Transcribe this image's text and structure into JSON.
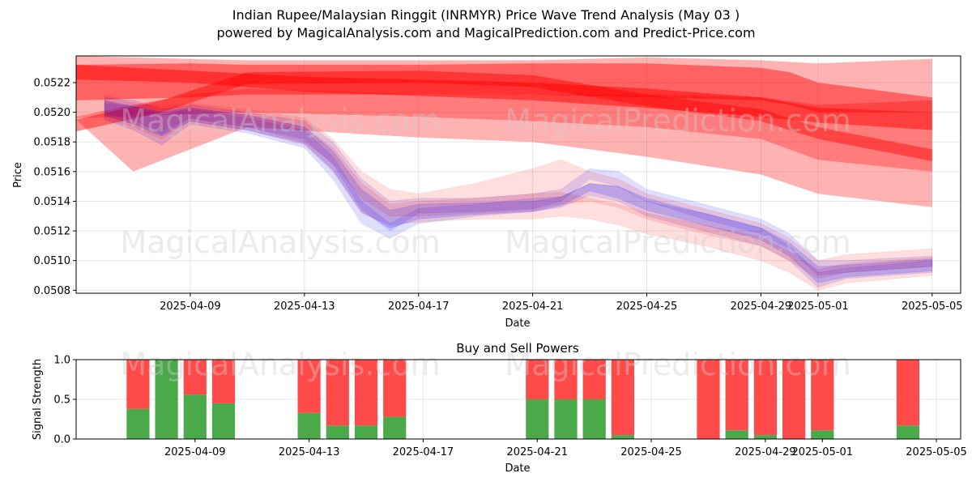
{
  "header": {
    "title": "Indian Rupee/Malaysian Ringgit (INRMYR) Price Wave Trend Analysis (May 03 )",
    "subtitle": "powered by MagicalAnalysis.com and MagicalPrediction.com and Predict-Price.com"
  },
  "watermarks": [
    "MagicalAnalysis.com",
    "MagicalPrediction.com"
  ],
  "colors": {
    "bear": "#ff0000",
    "bull": "#0000ff",
    "buy": "#4aaa4a",
    "sell": "#ff4a4a"
  },
  "chart_data": [
    {
      "type": "area",
      "title": "",
      "xlabel": "Date",
      "ylabel": "Price",
      "ylim": [
        0.05078,
        0.05238
      ],
      "xlim": [
        "2025-04-05",
        "2025-05-06"
      ],
      "grid": true,
      "y_ticks": [
        0.0508,
        0.051,
        0.0512,
        0.0514,
        0.0516,
        0.0518,
        0.052,
        0.0522
      ],
      "y_tick_labels": [
        "0.0508",
        "0.0510",
        "0.0512",
        "0.0514",
        "0.0516",
        "0.0518",
        "0.0520",
        "0.0522"
      ],
      "x_ticks": [
        "2025-04-09",
        "2025-04-13",
        "2025-04-17",
        "2025-04-21",
        "2025-04-25",
        "2025-04-29",
        "2025-05-01",
        "2025-05-05"
      ],
      "x_tick_labels": [
        "2025-04-09",
        "2025-04-13",
        "2025-04-17",
        "2025-04-21",
        "2025-04-25",
        "2025-04-29",
        "2025-05-01",
        "2025-05-05"
      ],
      "forecast_bands": [
        {
          "color": "#ff0000",
          "opacity": 0.3,
          "x": [
            "2025-04-05",
            "2025-04-11",
            "2025-04-17",
            "2025-04-21",
            "2025-04-25",
            "2025-04-29",
            "2025-05-01",
            "2025-05-05"
          ],
          "upper": [
            0.05238,
            0.05235,
            0.05235,
            0.05235,
            0.05237,
            0.05235,
            0.05233,
            0.05236
          ],
          "lower": [
            0.05196,
            0.052,
            0.05197,
            0.05194,
            0.0519,
            0.05182,
            0.05168,
            0.0516
          ]
        },
        {
          "color": "#ff0000",
          "opacity": 0.3,
          "x": [
            "2025-04-05",
            "2025-04-07",
            "2025-04-09",
            "2025-04-11",
            "2025-04-17",
            "2025-04-21",
            "2025-04-25",
            "2025-04-29",
            "2025-05-01",
            "2025-05-05"
          ],
          "upper": [
            0.05197,
            0.05205,
            0.05212,
            0.05216,
            0.05212,
            0.05212,
            0.05212,
            0.0521,
            0.05205,
            0.05208
          ],
          "lower": [
            0.05195,
            0.0516,
            0.05175,
            0.0519,
            0.05183,
            0.0518,
            0.0517,
            0.05158,
            0.05145,
            0.05136
          ]
        },
        {
          "color": "#ff0000",
          "opacity": 0.45,
          "x": [
            "2025-04-05",
            "2025-04-09",
            "2025-04-11",
            "2025-04-17",
            "2025-04-21",
            "2025-04-25",
            "2025-04-29",
            "2025-04-30",
            "2025-05-01",
            "2025-05-05"
          ],
          "upper": [
            0.05232,
            0.05233,
            0.05232,
            0.05232,
            0.05233,
            0.05233,
            0.0523,
            0.05227,
            0.0522,
            0.0521
          ],
          "lower": [
            0.05208,
            0.0521,
            0.05212,
            0.05212,
            0.05212,
            0.0521,
            0.05208,
            0.05205,
            0.052,
            0.052
          ]
        },
        {
          "color": "#ff0000",
          "opacity": 0.45,
          "x": [
            "2025-04-05",
            "2025-04-08",
            "2025-04-11",
            "2025-04-17",
            "2025-04-21",
            "2025-04-25",
            "2025-04-29",
            "2025-05-01",
            "2025-05-05"
          ],
          "upper": [
            0.05195,
            0.05208,
            0.05227,
            0.05228,
            0.05225,
            0.05212,
            0.05202,
            0.0519,
            0.05175
          ]
        },
        {
          "color": "#ff0000",
          "opacity": 0.5,
          "x": [
            "2025-04-05",
            "2025-04-09",
            "2025-04-13",
            "2025-04-17",
            "2025-04-21",
            "2025-04-25",
            "2025-04-29",
            "2025-05-01",
            "2025-05-05"
          ],
          "upper": [
            0.05232,
            0.05228,
            0.05224,
            0.05222,
            0.0522,
            0.05216,
            0.0521,
            0.05203,
            0.052
          ],
          "lower": [
            0.05222,
            0.0522,
            0.05214,
            0.05211,
            0.05208,
            0.05203,
            0.05197,
            0.05193,
            0.05188
          ]
        }
      ],
      "price_waves": [
        {
          "color": "#0000ff",
          "opacity": 0.13,
          "x": [
            "2025-04-06",
            "2025-04-07",
            "2025-04-08",
            "2025-04-09",
            "2025-04-11",
            "2025-04-13",
            "2025-04-14",
            "2025-04-15",
            "2025-04-16",
            "2025-04-17",
            "2025-04-19",
            "2025-04-21",
            "2025-04-22",
            "2025-04-23",
            "2025-04-24",
            "2025-04-25",
            "2025-04-27",
            "2025-04-29",
            "2025-04-30",
            "2025-05-01",
            "2025-05-02",
            "2025-05-05"
          ],
          "upper": [
            0.0521,
            0.05208,
            0.05202,
            0.05205,
            0.052,
            0.05194,
            0.0518,
            0.05155,
            0.0514,
            0.05142,
            0.05142,
            0.05145,
            0.05148,
            0.05162,
            0.0516,
            0.05148,
            0.05138,
            0.05128,
            0.05118,
            0.051,
            0.051,
            0.05103
          ],
          "lower": [
            0.052,
            0.05195,
            0.05185,
            0.05196,
            0.0519,
            0.05182,
            0.05165,
            0.05135,
            0.0512,
            0.05132,
            0.05133,
            0.05135,
            0.0514,
            0.05155,
            0.0515,
            0.0514,
            0.05128,
            0.05118,
            0.05108,
            0.0509,
            0.05092,
            0.05096
          ]
        },
        {
          "color": "#0000ff",
          "opacity": 0.13,
          "x": [
            "2025-04-06",
            "2025-04-07",
            "2025-04-08",
            "2025-04-09",
            "2025-04-11",
            "2025-04-13",
            "2025-04-14",
            "2025-04-15",
            "2025-04-16",
            "2025-04-17",
            "2025-04-19",
            "2025-04-21",
            "2025-04-22",
            "2025-04-23",
            "2025-04-24",
            "2025-04-25",
            "2025-04-27",
            "2025-04-29",
            "2025-04-30",
            "2025-05-01",
            "2025-05-02",
            "2025-05-05"
          ],
          "upper": [
            0.05206,
            0.05204,
            0.05198,
            0.05202,
            0.05196,
            0.05188,
            0.0517,
            0.0514,
            0.05125,
            0.05135,
            0.05138,
            0.05142,
            0.05143,
            0.05152,
            0.0515,
            0.0514,
            0.05132,
            0.05122,
            0.0511,
            0.05092,
            0.05095,
            0.051
          ],
          "lower": [
            0.05195,
            0.05188,
            0.05178,
            0.05192,
            0.05186,
            0.05176,
            0.05155,
            0.05125,
            0.05115,
            0.05125,
            0.0513,
            0.05133,
            0.05136,
            0.05144,
            0.0514,
            0.0513,
            0.0512,
            0.0511,
            0.051,
            0.05082,
            0.05088,
            0.05092
          ]
        },
        {
          "color": "#ff0000",
          "opacity": 0.13,
          "x": [
            "2025-04-06",
            "2025-04-07",
            "2025-04-08",
            "2025-04-09",
            "2025-04-11",
            "2025-04-13",
            "2025-04-14",
            "2025-04-15",
            "2025-04-16",
            "2025-04-17",
            "2025-04-19",
            "2025-04-21",
            "2025-04-22",
            "2025-04-23",
            "2025-04-24",
            "2025-04-25",
            "2025-04-27",
            "2025-04-29",
            "2025-04-30",
            "2025-05-01",
            "2025-05-02",
            "2025-05-05"
          ],
          "upper": [
            0.05212,
            0.05206,
            0.05204,
            0.05206,
            0.05202,
            0.05196,
            0.05182,
            0.0516,
            0.05148,
            0.05145,
            0.05152,
            0.05162,
            0.05168,
            0.0516,
            0.05155,
            0.05145,
            0.05135,
            0.05125,
            0.05115,
            0.051,
            0.05104,
            0.05108
          ],
          "lower": [
            0.05198,
            0.05192,
            0.05188,
            0.05196,
            0.0519,
            0.0518,
            0.05166,
            0.05142,
            0.0513,
            0.0513,
            0.05132,
            0.05134,
            0.05138,
            0.0514,
            0.05136,
            0.05128,
            0.05118,
            0.0511,
            0.051,
            0.05088,
            0.05092,
            0.05096
          ]
        },
        {
          "color": "#ff0000",
          "opacity": 0.13,
          "x": [
            "2025-04-06",
            "2025-04-07",
            "2025-04-08",
            "2025-04-09",
            "2025-04-11",
            "2025-04-13",
            "2025-04-14",
            "2025-04-15",
            "2025-04-16",
            "2025-04-17",
            "2025-04-19",
            "2025-04-21",
            "2025-04-22",
            "2025-04-23",
            "2025-04-24",
            "2025-04-25",
            "2025-04-27",
            "2025-04-29",
            "2025-04-30",
            "2025-05-01",
            "2025-05-02",
            "2025-05-05"
          ],
          "upper": [
            0.05208,
            0.05202,
            0.05198,
            0.05203,
            0.05198,
            0.0519,
            0.05176,
            0.05152,
            0.05138,
            0.0514,
            0.05142,
            0.05145,
            0.05146,
            0.05142,
            0.05138,
            0.05132,
            0.05124,
            0.05116,
            0.05106,
            0.05094,
            0.05098,
            0.05102
          ],
          "lower": [
            0.05196,
            0.0519,
            0.05182,
            0.05194,
            0.05188,
            0.05178,
            0.0516,
            0.05132,
            0.05124,
            0.05126,
            0.05128,
            0.05128,
            0.0513,
            0.05128,
            0.05124,
            0.05118,
            0.0511,
            0.051,
            0.05092,
            0.0508,
            0.05085,
            0.0509
          ]
        },
        {
          "color": "#0000ff",
          "opacity": 0.16,
          "x": [
            "2025-04-06",
            "2025-04-07",
            "2025-04-08",
            "2025-04-09",
            "2025-04-11",
            "2025-04-13",
            "2025-04-14",
            "2025-04-15",
            "2025-04-16",
            "2025-04-17",
            "2025-04-19",
            "2025-04-21",
            "2025-04-22",
            "2025-04-23",
            "2025-04-24",
            "2025-04-25",
            "2025-04-27",
            "2025-04-29",
            "2025-04-30",
            "2025-05-01",
            "2025-05-02",
            "2025-05-05"
          ],
          "upper": [
            0.05208,
            0.05204,
            0.052,
            0.05203,
            0.05198,
            0.0519,
            0.05174,
            0.05148,
            0.05134,
            0.05138,
            0.05139,
            0.0514,
            0.05143,
            0.05152,
            0.0515,
            0.05142,
            0.05132,
            0.05122,
            0.05112,
            0.05096,
            0.05097,
            0.05101
          ],
          "lower": [
            0.05198,
            0.05192,
            0.05184,
            0.05194,
            0.05188,
            0.05179,
            0.05161,
            0.05133,
            0.05122,
            0.05128,
            0.05131,
            0.05133,
            0.05137,
            0.05147,
            0.05142,
            0.05134,
            0.05124,
            0.05114,
            0.05103,
            0.05085,
            0.05089,
            0.05093
          ]
        }
      ]
    },
    {
      "type": "bar",
      "title": "Buy and Sell Powers",
      "xlabel": "Date",
      "ylabel": "Signal Strength",
      "ylim": [
        0,
        1.0
      ],
      "grid": true,
      "y_ticks": [
        0.0,
        0.5,
        1.0
      ],
      "y_tick_labels": [
        "0.0",
        "0.5",
        "1.0"
      ],
      "x_ticks": [
        "2025-04-09",
        "2025-04-13",
        "2025-04-17",
        "2025-04-21",
        "2025-04-25",
        "2025-04-29",
        "2025-05-01",
        "2025-05-05"
      ],
      "x_tick_labels": [
        "2025-04-09",
        "2025-04-13",
        "2025-04-17",
        "2025-04-21",
        "2025-04-25",
        "2025-04-29",
        "2025-05-01",
        "2025-05-05"
      ],
      "categories": [
        "2025-04-07",
        "2025-04-08",
        "2025-04-09",
        "2025-04-10",
        "2025-04-13",
        "2025-04-14",
        "2025-04-15",
        "2025-04-16",
        "2025-04-21",
        "2025-04-22",
        "2025-04-23",
        "2025-04-24",
        "2025-04-27",
        "2025-04-28",
        "2025-04-29",
        "2025-04-30",
        "2025-05-01",
        "2025-05-04"
      ],
      "series": [
        {
          "name": "Buy",
          "values": [
            0.38,
            1.0,
            0.56,
            0.45,
            0.33,
            0.17,
            0.17,
            0.28,
            0.5,
            0.5,
            0.5,
            0.05,
            0.0,
            0.11,
            0.05,
            0.0,
            0.11,
            0.17
          ]
        },
        {
          "name": "Sell",
          "values": [
            0.62,
            0.0,
            0.44,
            0.55,
            0.67,
            0.83,
            0.83,
            0.72,
            0.5,
            0.5,
            0.5,
            0.95,
            1.0,
            0.89,
            0.95,
            1.0,
            0.89,
            0.83
          ]
        }
      ]
    }
  ]
}
